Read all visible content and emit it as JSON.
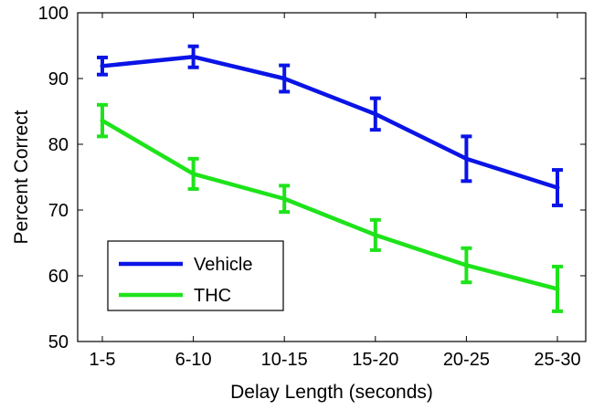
{
  "chart_data": {
    "type": "line",
    "title": "",
    "xlabel": "Delay Length (seconds)",
    "ylabel": "Percent Correct",
    "categories": [
      "1-5",
      "6-10",
      "10-15",
      "15-20",
      "20-25",
      "25-30"
    ],
    "ylim": [
      50,
      100
    ],
    "yticks": [
      50,
      60,
      70,
      80,
      90,
      100
    ],
    "grid": false,
    "legend_position": "bottom-left",
    "series": [
      {
        "name": "Vehicle",
        "color": "#0a14e6",
        "values": [
          91.9,
          93.3,
          90.0,
          84.6,
          77.8,
          73.4
        ],
        "errors": [
          1.3,
          1.6,
          2.0,
          2.4,
          3.4,
          2.7
        ]
      },
      {
        "name": "THC",
        "color": "#1ee31a",
        "values": [
          83.6,
          75.5,
          71.7,
          66.2,
          61.6,
          58.0
        ],
        "errors": [
          2.4,
          2.3,
          2.0,
          2.3,
          2.6,
          3.4
        ]
      }
    ]
  }
}
